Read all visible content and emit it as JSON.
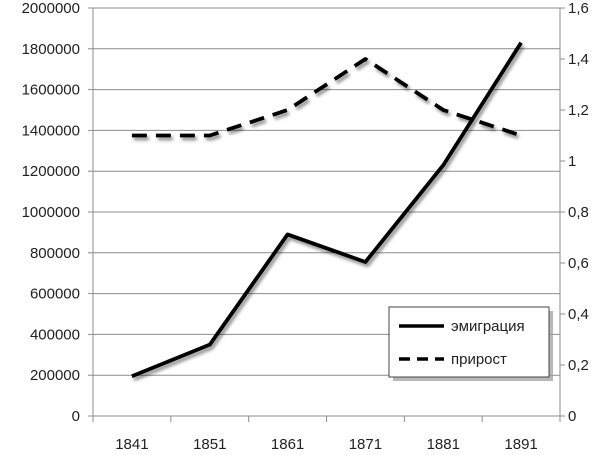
{
  "chart_data": {
    "type": "line",
    "categories": [
      "1841",
      "1851",
      "1861",
      "1871",
      "1881",
      "1891"
    ],
    "series": [
      {
        "name": "эмиграция",
        "axis": "left",
        "line_style": "solid",
        "values": [
          195000,
          350000,
          890000,
          755000,
          1230000,
          1830000
        ]
      },
      {
        "name": "прирост",
        "axis": "right",
        "line_style": "dashed",
        "values": [
          1.1,
          1.1,
          1.2,
          1.4,
          1.2,
          1.1
        ]
      }
    ],
    "y_left": {
      "min": 0,
      "max": 2000000,
      "ticks": [
        "0",
        "200000",
        "400000",
        "600000",
        "800000",
        "1000000",
        "1200000",
        "1400000",
        "1600000",
        "1800000",
        "2000000"
      ]
    },
    "y_right": {
      "min": 0,
      "max": 1.6,
      "ticks": [
        "0",
        "0,2",
        "0,4",
        "0,6",
        "0,8",
        "1",
        "1,2",
        "1,4",
        "1,6"
      ]
    },
    "grid": "horizontal",
    "legend_position": "bottom-right",
    "colors": {
      "line": "#000000",
      "grid": "#8c8c8c",
      "shadow": "#8a8a8a"
    }
  }
}
